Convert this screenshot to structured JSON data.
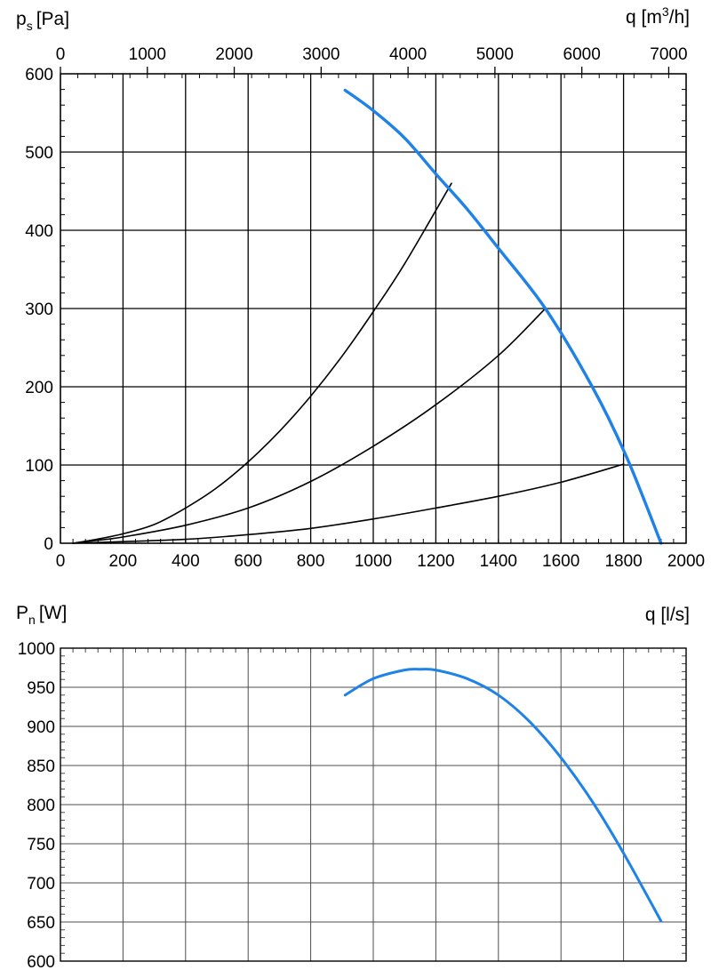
{
  "colors": {
    "grid_major": "#000000",
    "grid_minor_top": "#000000",
    "grid_minor_bottom": "#4d4d4d",
    "fan_curve": "#1e82e6",
    "system_curve": "#000000"
  },
  "chart_data": [
    {
      "type": "line",
      "ylabel_main": "p",
      "ylabel_sub": "s",
      "ylabel_unit": "[Pa]",
      "x2label_main": "q [m",
      "x2label_sup": "3",
      "x2label_unit": "/h]",
      "xlim": [
        0,
        2000
      ],
      "ylim": [
        0,
        600
      ],
      "x2lim": [
        0,
        7200
      ],
      "grid": true,
      "x_ticks": [
        0,
        200,
        400,
        600,
        800,
        1000,
        1200,
        1400,
        1600,
        1800,
        2000
      ],
      "y_ticks": [
        0,
        100,
        200,
        300,
        400,
        500,
        600
      ],
      "x2_ticks": [
        0,
        1000,
        2000,
        3000,
        4000,
        5000,
        6000,
        7000
      ],
      "series": [
        {
          "kind": "fan",
          "x": [
            910,
            1000,
            1100,
            1200,
            1300,
            1400,
            1550,
            1700,
            1810,
            1920
          ],
          "values": [
            579,
            553,
            518,
            472,
            427,
            377,
            300,
            200,
            110,
            0
          ]
        },
        {
          "kind": "system",
          "x": [
            40,
            100,
            200,
            300,
            400,
            500,
            600,
            700,
            800,
            900,
            1000,
            1100,
            1250
          ],
          "values": [
            0,
            4,
            12,
            24,
            45,
            71,
            104,
            143,
            188,
            239,
            296,
            357,
            460
          ]
        },
        {
          "kind": "system",
          "x": [
            40,
            100,
            200,
            400,
            600,
            800,
            1000,
            1200,
            1400,
            1550
          ],
          "values": [
            0,
            3,
            8,
            23,
            45,
            79,
            124,
            177,
            240,
            300
          ]
        },
        {
          "kind": "system",
          "x": [
            40,
            200,
            400,
            600,
            800,
            1000,
            1200,
            1400,
            1600,
            1800
          ],
          "values": [
            0,
            2,
            5,
            11,
            19,
            31,
            45,
            60,
            78,
            101
          ]
        }
      ]
    },
    {
      "type": "line",
      "ylabel_main": "P",
      "ylabel_sub": "n",
      "ylabel_unit": "[W]",
      "xlabel": "q [l/s]",
      "xlim": [
        0,
        2000
      ],
      "ylim": [
        600,
        1000
      ],
      "grid": true,
      "y_ticks": [
        600,
        650,
        700,
        750,
        800,
        850,
        900,
        950,
        1000
      ],
      "series": [
        {
          "kind": "fan",
          "x": [
            910,
            1000,
            1100,
            1150,
            1200,
            1300,
            1400,
            1500,
            1600,
            1700,
            1800,
            1920
          ],
          "values": [
            940,
            961,
            972,
            973,
            972,
            961,
            940,
            906,
            860,
            804,
            738,
            651
          ]
        }
      ]
    }
  ]
}
